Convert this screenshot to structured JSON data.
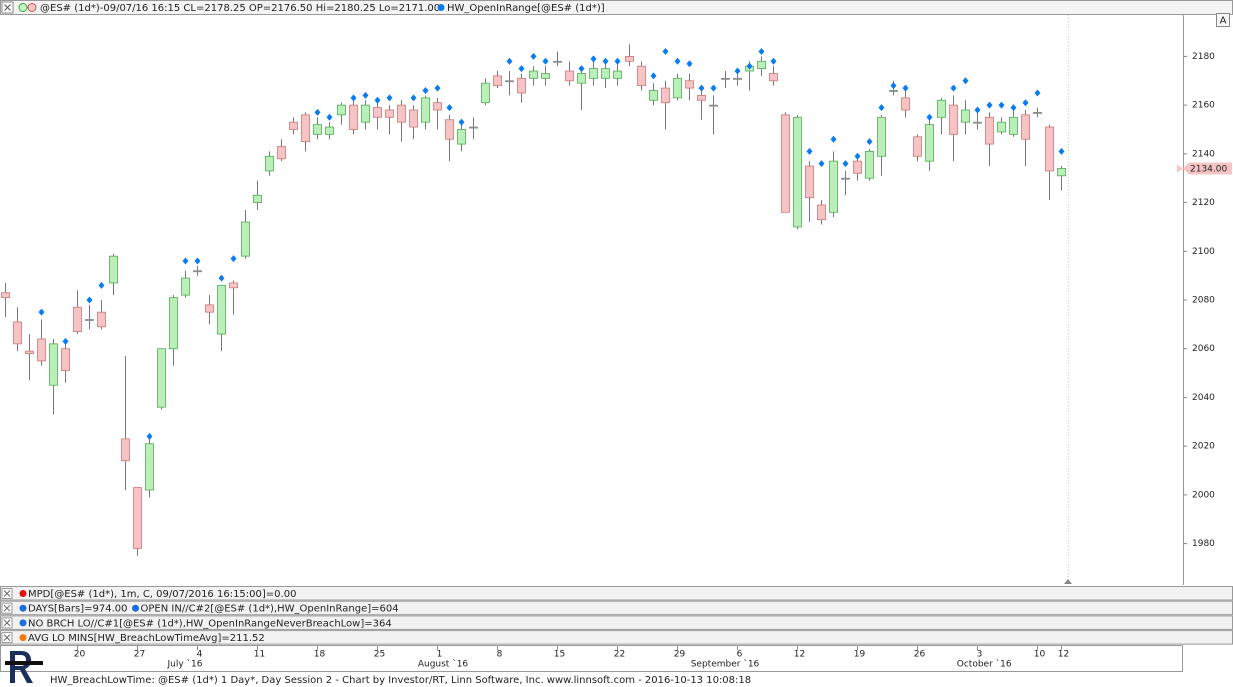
{
  "chart_data": {
    "type": "candlestick",
    "series": [
      {
        "name": "@ES# (1d*)-09/07/16 16:15 CL=2178.25 OP=2176.50 Hi=2180.25 Lo=2171.00",
        "up_color": "#b9f0b9",
        "down_color": "#f6c4c4",
        "flat_color": "#999999",
        "open": [
          2083,
          2071,
          2059,
          2064,
          2045,
          2060,
          2077,
          2072,
          2075,
          2087,
          2023,
          2003,
          2002,
          2036,
          2060,
          2082,
          2092,
          2078,
          2066,
          2087,
          2098,
          2120,
          2133,
          2143,
          2153,
          2156,
          2148,
          2148,
          2156,
          2160,
          2153,
          2159,
          2158,
          2160,
          2158,
          2153,
          2161,
          2154,
          2144,
          2151,
          2161,
          2172,
          2170,
          2171,
          2171,
          2171,
          2178,
          2174,
          2169,
          2171,
          2171,
          2171,
          2180,
          2176,
          2162,
          2167,
          2163,
          2170,
          2164,
          2160,
          2171,
          2171,
          2174,
          2175,
          2173,
          2156,
          2110,
          2135,
          2119,
          2116,
          2130,
          2137,
          2130,
          2139,
          2166,
          2163,
          2147,
          2137,
          2155,
          2160,
          2153,
          2153,
          2155,
          2149,
          2148,
          2156,
          2157,
          2151,
          2131
        ],
        "high": [
          2087,
          2077,
          2066,
          2072,
          2064,
          2064,
          2084,
          2078,
          2080,
          2099,
          2057,
          2003,
          2023,
          2060,
          2082,
          2092,
          2094,
          2082,
          2086,
          2088,
          2117,
          2129,
          2141,
          2146,
          2155,
          2157,
          2155,
          2153,
          2161,
          2162,
          2162,
          2161,
          2160,
          2162,
          2160,
          2164,
          2163,
          2156,
          2152,
          2155,
          2171,
          2174,
          2174,
          2173,
          2176,
          2176,
          2182,
          2178,
          2176,
          2178,
          2178,
          2178,
          2185,
          2178,
          2169,
          2170,
          2173,
          2173,
          2167,
          2164,
          2174,
          2175,
          2178,
          2180,
          2176,
          2157,
          2156,
          2137,
          2121,
          2141,
          2133,
          2139,
          2142,
          2156,
          2170,
          2166,
          2148,
          2154,
          2163,
          2164,
          2162,
          2158,
          2157,
          2155,
          2158,
          2158,
          2159,
          2152,
          2135
        ],
        "low": [
          2073,
          2059,
          2047,
          2053,
          2033,
          2046,
          2066,
          2068,
          2068,
          2082,
          2002,
          1975,
          1999,
          2035,
          2053,
          2081,
          2090,
          2070,
          2059,
          2074,
          2097,
          2117,
          2131,
          2137,
          2148,
          2141,
          2146,
          2146,
          2152,
          2148,
          2150,
          2150,
          2148,
          2145,
          2146,
          2150,
          2150,
          2137,
          2141,
          2146,
          2160,
          2167,
          2164,
          2161,
          2168,
          2168,
          2176,
          2168,
          2158,
          2168,
          2167,
          2168,
          2176,
          2166,
          2160,
          2150,
          2162,
          2162,
          2154,
          2148,
          2167,
          2168,
          2166,
          2172,
          2168,
          2116,
          2109,
          2112,
          2111,
          2114,
          2123,
          2129,
          2129,
          2131,
          2164,
          2155,
          2137,
          2133,
          2148,
          2137,
          2148,
          2150,
          2135,
          2148,
          2147,
          2135,
          2155,
          2121,
          2125
        ],
        "close": [
          2081,
          2062,
          2058,
          2055,
          2062,
          2051,
          2067,
          2072,
          2069,
          2098,
          2014,
          1978,
          2021,
          2060,
          2081,
          2089,
          2092,
          2075,
          2086,
          2085,
          2112,
          2123,
          2139,
          2138,
          2150,
          2145,
          2152,
          2151,
          2160,
          2150,
          2160,
          2155,
          2155,
          2153,
          2151,
          2163,
          2158,
          2146,
          2150,
          2151,
          2169,
          2168,
          2170,
          2165,
          2174,
          2173,
          2178,
          2170,
          2173,
          2175,
          2175,
          2174,
          2178,
          2168,
          2166,
          2161,
          2171,
          2167,
          2162,
          2160,
          2171,
          2171,
          2176,
          2178,
          2170,
          2116,
          2155,
          2122,
          2113,
          2137,
          2130,
          2132,
          2141,
          2155,
          2166,
          2158,
          2139,
          2152,
          2162,
          2148,
          2158,
          2153,
          2144,
          2153,
          2155,
          2146,
          2157,
          2133,
          2134
        ]
      },
      {
        "name": "HW_OpenInRange[@ES# (1d*)]",
        "color": "#0a7cf0",
        "values": [
          null,
          null,
          null,
          2075,
          null,
          2063,
          null,
          2080,
          2086,
          null,
          null,
          null,
          2024,
          null,
          null,
          2096,
          2096,
          null,
          2089,
          2097,
          null,
          null,
          null,
          null,
          null,
          null,
          2157,
          2155,
          null,
          2163,
          2164,
          2162,
          2163,
          null,
          2163,
          2166,
          2167,
          2159,
          2153,
          null,
          null,
          null,
          2178,
          2175,
          2180,
          2178,
          null,
          null,
          2175,
          2179,
          2178,
          2178,
          null,
          null,
          2172,
          2182,
          2178,
          2177,
          2167,
          2167,
          null,
          2174,
          2176,
          2182,
          2178,
          null,
          null,
          2141,
          2136,
          2146,
          2136,
          2139,
          2145,
          2159,
          2168,
          2167,
          null,
          2155,
          null,
          2167,
          2170,
          2158,
          2160,
          2160,
          2159,
          2161,
          2165,
          null,
          2141
        ]
      }
    ],
    "categories": [
      null,
      null,
      null,
      null,
      null,
      null,
      "20",
      null,
      null,
      null,
      null,
      "27",
      null,
      null,
      null,
      null,
      "4",
      null,
      null,
      null,
      null,
      "11",
      null,
      null,
      null,
      null,
      "18",
      null,
      null,
      null,
      null,
      "25",
      null,
      null,
      null,
      null,
      "1",
      null,
      null,
      null,
      null,
      "8",
      null,
      null,
      null,
      null,
      "15",
      null,
      null,
      null,
      null,
      "22",
      null,
      null,
      null,
      null,
      "29",
      null,
      null,
      null,
      null,
      "6",
      null,
      null,
      null,
      null,
      "12",
      null,
      null,
      null,
      null,
      "19",
      null,
      null,
      null,
      null,
      "26",
      null,
      null,
      null,
      null,
      "3",
      null,
      null,
      null,
      null,
      "10",
      null,
      "12"
    ],
    "month_labels": [
      "July `16",
      "August `16",
      "September `16",
      "October `16"
    ],
    "ylim": [
      1963,
      2197
    ],
    "yticks": [
      1980,
      2000,
      2020,
      2040,
      2060,
      2080,
      2100,
      2120,
      2140,
      2160,
      2180
    ],
    "last_price": {
      "value": 2134,
      "label": "2134.00"
    },
    "scale_button": "A"
  },
  "panels": [
    {
      "label": "MPD[@ES# (1d*), 1m, C, 09/07/2016 16:15:00]=0.00",
      "color": "#e01010"
    },
    {
      "label": "DAYS[Bars]=974.00",
      "color": "#1a6fe0",
      "label2": "OPEN IN//C#2[@ES# (1d*),HW_OpenInRange]=604"
    },
    {
      "label": "NO BRCH LO//C#1[@ES# (1d*),HW_OpenInRangeNeverBreachLow]=364",
      "color": "#1a6fe0"
    },
    {
      "label": "AVG LO MINS[HW_BreachLowTimeAvg]=211.52",
      "color": "#f07a10"
    }
  ],
  "footer": "HW_BreachLowTime: @ES# (1d*) 1 Day*, Day Session 2 - Chart by Investor/RT, Linn Software, Inc. www.linnsoft.com - 2016-10-13 10:08:18"
}
